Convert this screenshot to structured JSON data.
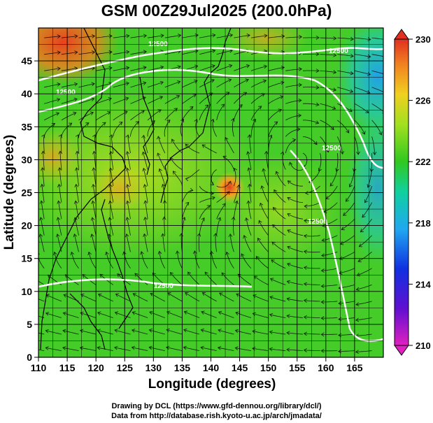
{
  "title": "GSM 00Z29Jul2025 (200.0hPa)",
  "xlabel": "Longitude (degrees)",
  "ylabel": "Latitude (degrees)",
  "x_ticks": [
    "110",
    "115",
    "120",
    "125",
    "130",
    "135",
    "140",
    "145",
    "150",
    "155",
    "160",
    "165"
  ],
  "y_ticks": [
    "0",
    "5",
    "10",
    "15",
    "20",
    "25",
    "30",
    "35",
    "40",
    "45"
  ],
  "colorbar": {
    "unit_range": [
      210,
      230
    ],
    "labels": [
      "230",
      "226",
      "222",
      "218",
      "214",
      "210"
    ]
  },
  "contour_labels": [
    "12500",
    "12500",
    "12500",
    "12500",
    "12500",
    "12500"
  ],
  "credits": {
    "line1": "Drawing by DCL (https://www.gfd-dennou.org/library/dcl/)",
    "line2": "Data from http://database.rish.kyoto-u.ac.jp/arch/jmadata/"
  },
  "chart_data": {
    "type": "heatmap",
    "title": "GSM 00Z29Jul2025 (200.0hPa)",
    "xlabel": "Longitude (degrees)",
    "ylabel": "Latitude (degrees)",
    "xlim": [
      110,
      170
    ],
    "ylim": [
      0,
      50
    ],
    "grid": true,
    "colorbar_range": [
      210,
      230
    ],
    "features": [
      "temperature shading",
      "wind streamlines",
      "geopotential height contours (white)",
      "coastlines"
    ]
  }
}
